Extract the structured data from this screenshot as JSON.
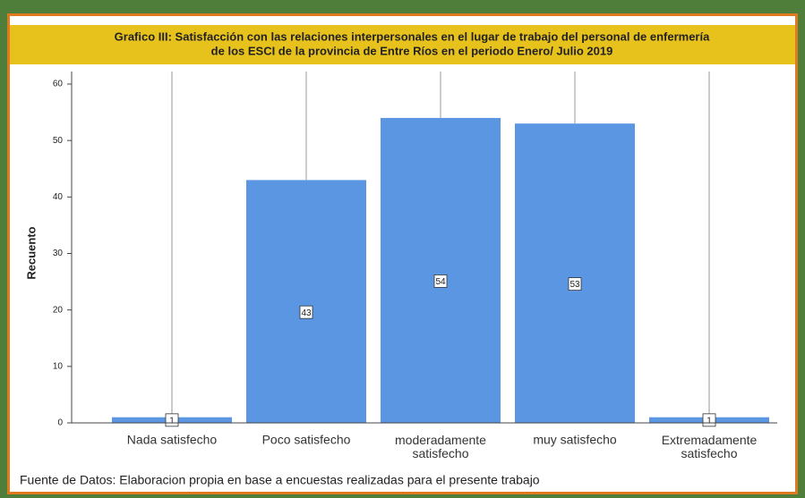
{
  "chart_data": {
    "type": "bar",
    "title": [
      "Grafico III: Satisfacción con las relaciones interpersonales en el lugar de trabajo del personal de enfermería",
      "de los ESCI de la provincia de Entre Ríos en el periodo Enero/ Julio 2019"
    ],
    "y_label": "Recuento",
    "categories": [
      "Nada satisfecho",
      "Poco satisfecho",
      "moderadamente satisfecho",
      "muy satisfecho",
      "Extremadamente satisfecho"
    ],
    "values": [
      1,
      43,
      54,
      53,
      1
    ],
    "color": "#5b96e3",
    "ylim": [
      0,
      60
    ],
    "yticks": [
      0,
      10,
      20,
      30,
      40,
      50,
      60
    ],
    "note": "Fuente de Datos: Elaboracion propia en base a encuestas realizadas para el presente trabajo"
  }
}
